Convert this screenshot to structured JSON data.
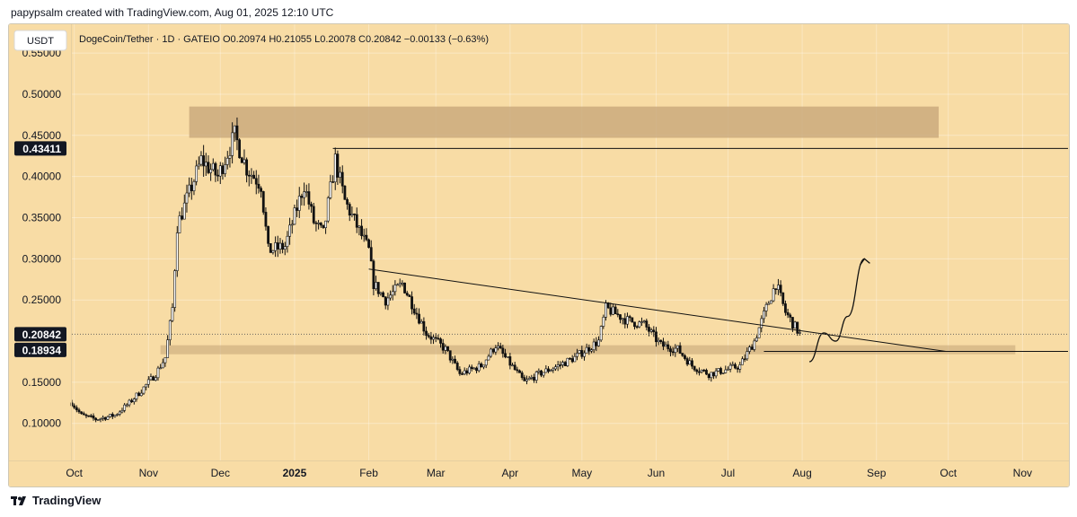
{
  "header": {
    "attribution": "papypsalm created with TradingView.com, Aug 01, 2025 12:10 UTC"
  },
  "footer": {
    "brand": "TradingView"
  },
  "colors": {
    "background": "#f8dca5",
    "candle": "#111111",
    "zone": "#c8a87a",
    "axis_text": "#131722",
    "label_bg": "#131722",
    "label_text": "#ffffff",
    "grid": "#ffffff"
  },
  "chart_data": {
    "type": "candlestick",
    "currency_label": "USDT",
    "legend": "DogeCoin/Tether · 1D · GATEIO  O0.20974  H0.21055  L0.20078  C0.20842  −0.00133 (−0.63%)",
    "y_ticks": [
      "0.55000",
      "0.50000",
      "0.45000",
      "0.40000",
      "0.35000",
      "0.30000",
      "0.25000",
      "0.15000",
      "0.10000"
    ],
    "ylim": [
      0.055,
      0.585
    ],
    "x_ticks": [
      {
        "label": "Oct",
        "date": "2024-10-01"
      },
      {
        "label": "Nov",
        "date": "2024-11-01"
      },
      {
        "label": "Dec",
        "date": "2024-12-01"
      },
      {
        "label": "2025",
        "date": "2025-01-01"
      },
      {
        "label": "Feb",
        "date": "2025-02-01"
      },
      {
        "label": "Mar",
        "date": "2025-03-01"
      },
      {
        "label": "Apr",
        "date": "2025-04-01"
      },
      {
        "label": "May",
        "date": "2025-05-01"
      },
      {
        "label": "Jun",
        "date": "2025-06-01"
      },
      {
        "label": "Jul",
        "date": "2025-07-01"
      },
      {
        "label": "Aug",
        "date": "2025-08-01"
      },
      {
        "label": "Sep",
        "date": "2025-09-01"
      },
      {
        "label": "Oct",
        "date": "2025-10-01"
      },
      {
        "label": "Nov",
        "date": "2025-11-01"
      }
    ],
    "xlim": [
      "2024-09-30",
      "2025-11-20"
    ],
    "price_labels": [
      {
        "value": 0.43411,
        "text": "0.43411"
      },
      {
        "value": 0.20842,
        "text": "0.20842"
      },
      {
        "value": 0.18934,
        "text": "0.18934"
      }
    ],
    "close_path": [
      {
        "date": "2024-09-30",
        "value": 0.125
      },
      {
        "date": "2024-10-04",
        "value": 0.11
      },
      {
        "date": "2024-10-10",
        "value": 0.105
      },
      {
        "date": "2024-10-18",
        "value": 0.11
      },
      {
        "date": "2024-10-24",
        "value": 0.125
      },
      {
        "date": "2024-10-29",
        "value": 0.14
      },
      {
        "date": "2024-11-04",
        "value": 0.16
      },
      {
        "date": "2024-11-08",
        "value": 0.18
      },
      {
        "date": "2024-11-11",
        "value": 0.24
      },
      {
        "date": "2024-11-13",
        "value": 0.34
      },
      {
        "date": "2024-11-18",
        "value": 0.38
      },
      {
        "date": "2024-11-23",
        "value": 0.42
      },
      {
        "date": "2024-11-30",
        "value": 0.4
      },
      {
        "date": "2024-12-07",
        "value": 0.45
      },
      {
        "date": "2024-12-12",
        "value": 0.41
      },
      {
        "date": "2024-12-18",
        "value": 0.39
      },
      {
        "date": "2024-12-21",
        "value": 0.31
      },
      {
        "date": "2024-12-28",
        "value": 0.315
      },
      {
        "date": "2025-01-05",
        "value": 0.39
      },
      {
        "date": "2025-01-09",
        "value": 0.345
      },
      {
        "date": "2025-01-13",
        "value": 0.33
      },
      {
        "date": "2025-01-18",
        "value": 0.42
      },
      {
        "date": "2025-01-22",
        "value": 0.37
      },
      {
        "date": "2025-01-27",
        "value": 0.34
      },
      {
        "date": "2025-02-01",
        "value": 0.31
      },
      {
        "date": "2025-02-03",
        "value": 0.27
      },
      {
        "date": "2025-02-08",
        "value": 0.25
      },
      {
        "date": "2025-02-15",
        "value": 0.27
      },
      {
        "date": "2025-02-25",
        "value": 0.21
      },
      {
        "date": "2025-03-05",
        "value": 0.19
      },
      {
        "date": "2025-03-11",
        "value": 0.16
      },
      {
        "date": "2025-03-20",
        "value": 0.17
      },
      {
        "date": "2025-03-26",
        "value": 0.195
      },
      {
        "date": "2025-04-07",
        "value": 0.15
      },
      {
        "date": "2025-04-13",
        "value": 0.16
      },
      {
        "date": "2025-04-21",
        "value": 0.17
      },
      {
        "date": "2025-04-28",
        "value": 0.18
      },
      {
        "date": "2025-05-08",
        "value": 0.2
      },
      {
        "date": "2025-05-11",
        "value": 0.24
      },
      {
        "date": "2025-05-20",
        "value": 0.225
      },
      {
        "date": "2025-05-27",
        "value": 0.22
      },
      {
        "date": "2025-06-03",
        "value": 0.195
      },
      {
        "date": "2025-06-10",
        "value": 0.19
      },
      {
        "date": "2025-06-16",
        "value": 0.17
      },
      {
        "date": "2025-06-23",
        "value": 0.16
      },
      {
        "date": "2025-06-30",
        "value": 0.165
      },
      {
        "date": "2025-07-06",
        "value": 0.17
      },
      {
        "date": "2025-07-12",
        "value": 0.2
      },
      {
        "date": "2025-07-17",
        "value": 0.24
      },
      {
        "date": "2025-07-21",
        "value": 0.27
      },
      {
        "date": "2025-07-25",
        "value": 0.235
      },
      {
        "date": "2025-07-31",
        "value": 0.2084
      }
    ],
    "highlight_zones": [
      {
        "x0": "2024-11-18",
        "x1": "2025-09-27",
        "y0": 0.447,
        "y1": 0.485
      },
      {
        "x0": "2024-11-06",
        "x1": "2025-10-29",
        "y0": 0.184,
        "y1": 0.195
      }
    ],
    "trend_lines": [
      {
        "x0": "2025-01-17",
        "y0": 0.4341,
        "x1": "2025-11-20",
        "y1": 0.4341
      },
      {
        "x0": "2025-02-01",
        "y0": 0.2875,
        "x1": "2025-09-30",
        "y1": 0.1875
      },
      {
        "x0": "2025-07-16",
        "y0": 0.1875,
        "x1": "2025-11-20",
        "y1": 0.1875
      }
    ],
    "projection": [
      {
        "date": "2025-08-04",
        "value": 0.175
      },
      {
        "date": "2025-08-10",
        "value": 0.21
      },
      {
        "date": "2025-08-15",
        "value": 0.2
      },
      {
        "date": "2025-08-20",
        "value": 0.23
      },
      {
        "date": "2025-08-27",
        "value": 0.3
      }
    ]
  }
}
